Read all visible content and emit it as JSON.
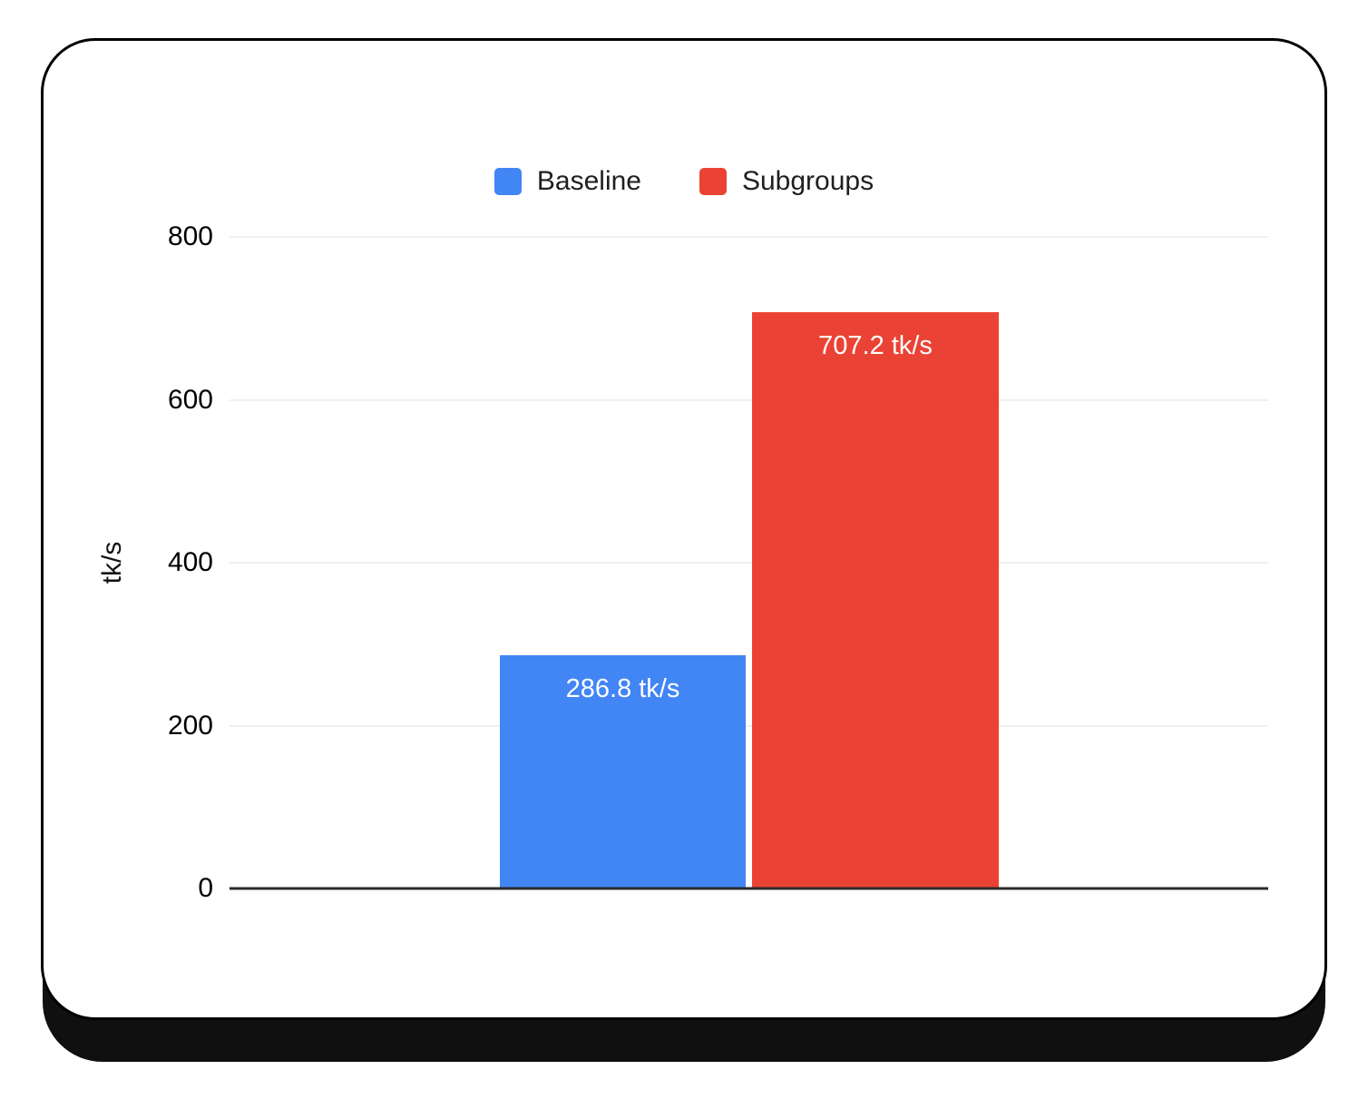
{
  "chart_data": {
    "type": "bar",
    "categories": [
      "Baseline",
      "Subgroups"
    ],
    "values": [
      286.8,
      707.2
    ],
    "value_labels": [
      "286.8 tk/s",
      "707.2 tk/s"
    ],
    "colors": [
      "#4285F4",
      "#EA4335"
    ],
    "title": "",
    "xlabel": "",
    "ylabel": "tk/s",
    "ylim": [
      0,
      800
    ],
    "yticks": [
      0,
      200,
      400,
      600,
      800
    ],
    "grid": true,
    "legend_position": "top",
    "legend_labels": [
      "Baseline",
      "Subgroups"
    ]
  }
}
